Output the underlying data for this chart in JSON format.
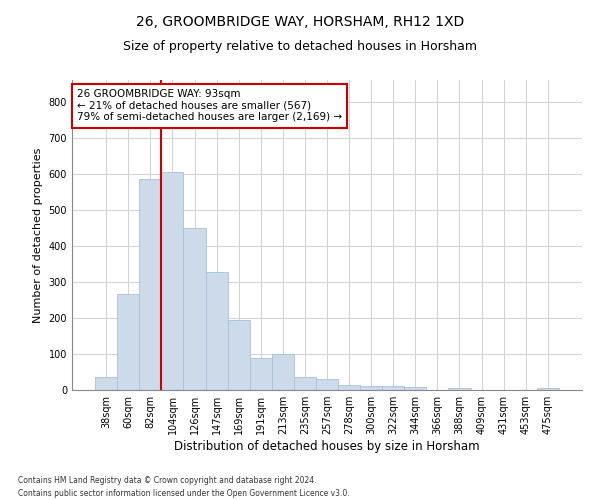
{
  "title1": "26, GROOMBRIDGE WAY, HORSHAM, RH12 1XD",
  "title2": "Size of property relative to detached houses in Horsham",
  "xlabel": "Distribution of detached houses by size in Horsham",
  "ylabel": "Number of detached properties",
  "categories": [
    "38sqm",
    "60sqm",
    "82sqm",
    "104sqm",
    "126sqm",
    "147sqm",
    "169sqm",
    "191sqm",
    "213sqm",
    "235sqm",
    "257sqm",
    "278sqm",
    "300sqm",
    "322sqm",
    "344sqm",
    "366sqm",
    "388sqm",
    "409sqm",
    "431sqm",
    "453sqm",
    "475sqm"
  ],
  "values": [
    35,
    265,
    585,
    605,
    450,
    328,
    195,
    90,
    100,
    35,
    30,
    15,
    12,
    10,
    7,
    0,
    5,
    0,
    0,
    0,
    5
  ],
  "bar_color": "#ccdaea",
  "bar_edge_color": "#a8c0d8",
  "vline_x_index": 2.5,
  "vline_color": "#cc0000",
  "annotation_text": "26 GROOMBRIDGE WAY: 93sqm\n← 21% of detached houses are smaller (567)\n79% of semi-detached houses are larger (2,169) →",
  "annotation_box_color": "#ffffff",
  "annotation_box_edge": "#cc0000",
  "ylim": [
    0,
    860
  ],
  "yticks": [
    0,
    100,
    200,
    300,
    400,
    500,
    600,
    700,
    800
  ],
  "grid_color": "#d0d0d8",
  "bg_color": "#ffffff",
  "footer1": "Contains HM Land Registry data © Crown copyright and database right 2024.",
  "footer2": "Contains public sector information licensed under the Open Government Licence v3.0.",
  "title1_fontsize": 10,
  "title2_fontsize": 9,
  "tick_fontsize": 7,
  "ylabel_fontsize": 8,
  "xlabel_fontsize": 8.5,
  "annotation_fontsize": 7.5,
  "footer_fontsize": 5.5
}
